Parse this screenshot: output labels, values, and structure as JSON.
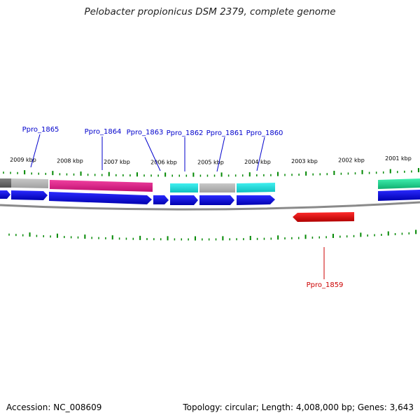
{
  "title": "Pelobacter propionicus DSM 2379, complete genome",
  "footer": {
    "accession": "Accession: NC_008609",
    "summary": "Topology: circular; Length: 4,008,000 bp; Genes: 3,643"
  },
  "colors": {
    "forward_cds": "#0000ee",
    "reverse_cds": "#ee0000",
    "tick": "#008800",
    "backbone": "#888888",
    "label_forward": "#0000cc",
    "label_reverse": "#cc0000",
    "magenta_feature": "#e0208a",
    "cyan_feature": "#10e0e0",
    "gray_feature": "#b0b0b0",
    "green_feature": "#20d090"
  },
  "scale_labels": [
    "2009 kbp",
    "2008 kbp",
    "2007 kbp",
    "2006 kbp",
    "2005 kbp",
    "2004 kbp",
    "2003 kbp",
    "2002 kbp",
    "2001 kbp"
  ],
  "genes": [
    {
      "name": "Ppro_1865",
      "strand": "forward"
    },
    {
      "name": "Ppro_1864",
      "strand": "forward"
    },
    {
      "name": "Ppro_1863",
      "strand": "forward"
    },
    {
      "name": "Ppro_1862",
      "strand": "forward"
    },
    {
      "name": "Ppro_1861",
      "strand": "forward"
    },
    {
      "name": "Ppro_1860",
      "strand": "forward"
    },
    {
      "name": "Ppro_1859",
      "strand": "reverse"
    }
  ]
}
